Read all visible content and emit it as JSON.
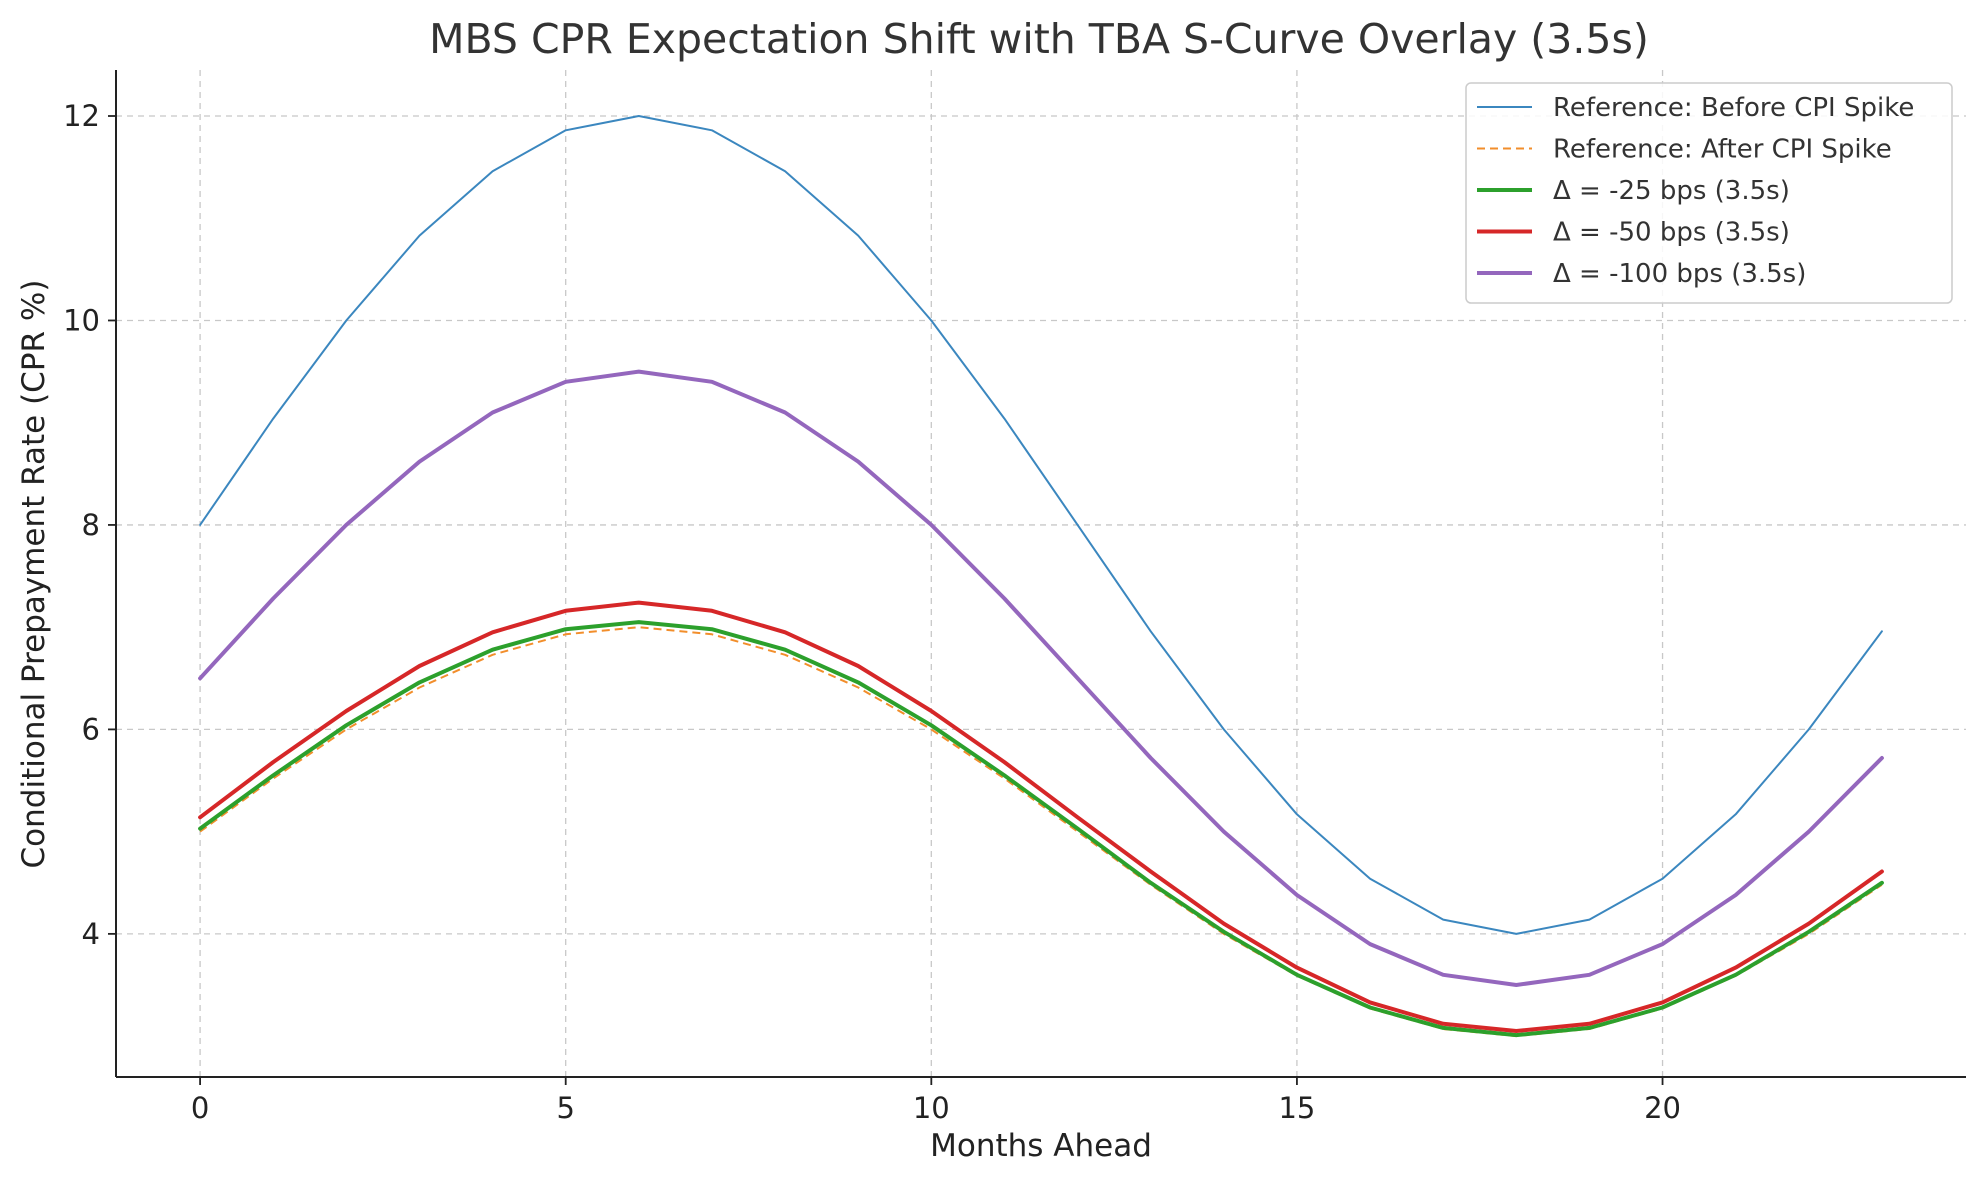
{
  "chart_data": {
    "type": "line",
    "title": "MBS CPR Expectation Shift with TBA S-Curve Overlay (3.5s)",
    "xlabel": "Months Ahead",
    "ylabel": "Conditional Prepayment Rate (CPR %)",
    "x": [
      0,
      1,
      2,
      3,
      4,
      5,
      6,
      7,
      8,
      9,
      10,
      11,
      12,
      13,
      14,
      15,
      16,
      17,
      18,
      19,
      20,
      21,
      22,
      23
    ],
    "xlim": [
      -1.15,
      24.15
    ],
    "ylim": [
      2.6,
      12.45
    ],
    "xticks": [
      0,
      5,
      10,
      15,
      20
    ],
    "yticks": [
      4,
      6,
      8,
      10,
      12
    ],
    "grid": true,
    "legend_position": "top-right",
    "series": [
      {
        "name": "Reference: Before CPI Spike",
        "color": "#3b87bf",
        "style": "solid",
        "width": 2,
        "values": [
          8.0,
          9.04,
          10.0,
          10.83,
          11.46,
          11.86,
          12.0,
          11.86,
          11.46,
          10.83,
          10.0,
          9.04,
          8.0,
          6.96,
          6.0,
          5.17,
          4.54,
          4.14,
          4.0,
          4.14,
          4.54,
          5.17,
          6.0,
          6.96
        ]
      },
      {
        "name": "Reference: After CPI Spike",
        "color": "#f28e2b",
        "style": "dashed",
        "width": 2,
        "values": [
          5.0,
          5.52,
          6.0,
          6.41,
          6.73,
          6.93,
          7.0,
          6.93,
          6.73,
          6.41,
          6.0,
          5.52,
          5.0,
          4.48,
          4.0,
          3.59,
          3.27,
          3.07,
          3.0,
          3.07,
          3.27,
          3.59,
          4.0,
          4.48
        ]
      },
      {
        "name": "Δ = -25 bps (3.5s)",
        "color": "#2ca02c",
        "style": "solid",
        "width": 4,
        "values": [
          5.03,
          5.55,
          6.04,
          6.46,
          6.78,
          6.98,
          7.05,
          6.98,
          6.78,
          6.46,
          6.04,
          5.55,
          5.03,
          4.5,
          4.02,
          3.6,
          3.28,
          3.08,
          3.01,
          3.08,
          3.28,
          3.6,
          4.02,
          4.5
        ]
      },
      {
        "name": "Δ = -50 bps (3.5s)",
        "color": "#d62728",
        "style": "solid",
        "width": 4,
        "values": [
          5.14,
          5.68,
          6.18,
          6.62,
          6.95,
          7.16,
          7.24,
          7.16,
          6.95,
          6.62,
          6.18,
          5.68,
          5.14,
          4.61,
          4.1,
          3.67,
          3.33,
          3.12,
          3.05,
          3.12,
          3.33,
          3.67,
          4.1,
          4.61
        ]
      },
      {
        "name": "Δ = -100 bps (3.5s)",
        "color": "#9467bd",
        "style": "solid",
        "width": 4,
        "values": [
          6.5,
          7.28,
          8.0,
          8.62,
          9.1,
          9.4,
          9.5,
          9.4,
          9.1,
          8.62,
          8.0,
          7.28,
          6.5,
          5.72,
          5.0,
          4.38,
          3.9,
          3.6,
          3.5,
          3.6,
          3.9,
          4.38,
          5.0,
          5.72
        ]
      }
    ]
  }
}
